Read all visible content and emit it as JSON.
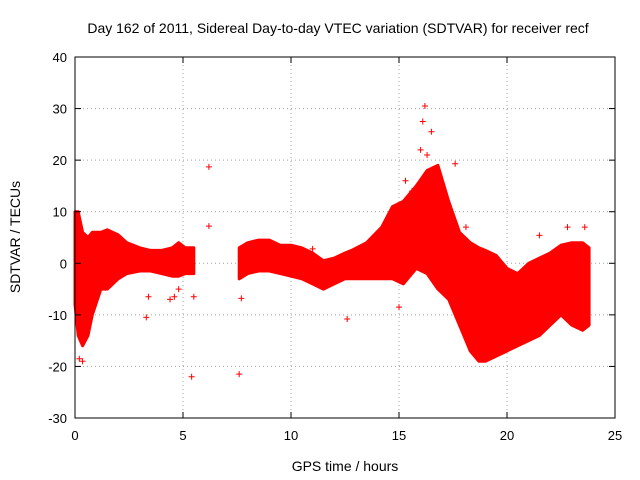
{
  "chart_data": {
    "type": "scatter",
    "title": "Day 162 of 2011, Sidereal Day-to-day VTEC variation (SDTVAR) for receiver recf",
    "xlabel": "GPS time / hours",
    "ylabel": "SDTVAR / TECUs",
    "xlim": [
      0,
      25
    ],
    "ylim": [
      -30,
      40
    ],
    "xticks": [
      "0",
      "5",
      "10",
      "15",
      "20",
      "25"
    ],
    "yticks": [
      "-30",
      "-20",
      "-10",
      "0",
      "10",
      "20",
      "30",
      "40"
    ],
    "grid": true,
    "marker": "+",
    "color": "#ff0000",
    "band_segments": [
      [
        [
          0.0,
          -8,
          10
        ],
        [
          0.15,
          -14,
          10
        ],
        [
          0.35,
          -16,
          6
        ],
        [
          0.6,
          -14,
          5
        ],
        [
          0.8,
          -10,
          6
        ],
        [
          1.2,
          -5,
          6
        ],
        [
          1.5,
          -5,
          6.5
        ],
        [
          2.0,
          -3,
          5.5
        ],
        [
          2.4,
          -2,
          4
        ],
        [
          3.0,
          -1.5,
          3
        ],
        [
          3.5,
          -1.5,
          2.5
        ],
        [
          4.0,
          -2,
          2.5
        ],
        [
          4.5,
          -2.5,
          3
        ],
        [
          4.8,
          -2.5,
          4
        ],
        [
          5.1,
          -2,
          3
        ],
        [
          5.5,
          -2,
          3
        ]
      ],
      [
        [
          7.6,
          -3,
          3
        ],
        [
          8.0,
          -2,
          4
        ],
        [
          8.5,
          -1.5,
          4.5
        ],
        [
          9.0,
          -1.5,
          4.5
        ],
        [
          9.5,
          -2,
          3.5
        ],
        [
          10.0,
          -2.5,
          3.5
        ],
        [
          10.5,
          -3,
          3
        ],
        [
          11.0,
          -4,
          2
        ],
        [
          11.5,
          -5,
          0.5
        ],
        [
          12.0,
          -4,
          1
        ],
        [
          12.5,
          -3,
          2
        ],
        [
          12.8,
          -3,
          2.5
        ],
        [
          13.5,
          -3,
          4
        ],
        [
          14.2,
          -3,
          7
        ],
        [
          14.7,
          -3,
          11
        ],
        [
          15.2,
          -4,
          12
        ],
        [
          15.8,
          -1,
          15
        ],
        [
          16.3,
          -2,
          18
        ],
        [
          16.8,
          -5,
          19
        ],
        [
          17.3,
          -7,
          12
        ],
        [
          17.8,
          -12,
          6
        ],
        [
          18.3,
          -17,
          4
        ],
        [
          18.7,
          -19,
          3
        ],
        [
          19.0,
          -19,
          2.5
        ],
        [
          19.5,
          -18,
          1.5
        ],
        [
          20.0,
          -17,
          -1
        ],
        [
          20.5,
          -16,
          -2
        ],
        [
          21.0,
          -15,
          0
        ],
        [
          21.5,
          -14,
          1
        ],
        [
          22.0,
          -12,
          2
        ],
        [
          22.5,
          -10,
          3.5
        ],
        [
          23.0,
          -12,
          4
        ],
        [
          23.5,
          -13,
          4
        ],
        [
          23.8,
          -12,
          3
        ]
      ]
    ],
    "outliers": [
      [
        0.2,
        -18.5
      ],
      [
        0.35,
        -19
      ],
      [
        3.4,
        -6.5
      ],
      [
        3.3,
        -10.5
      ],
      [
        4.4,
        -7
      ],
      [
        4.6,
        -6.5
      ],
      [
        4.8,
        -5
      ],
      [
        5.4,
        -22
      ],
      [
        5.5,
        -6.5
      ],
      [
        6.2,
        18.7
      ],
      [
        6.2,
        7.2
      ],
      [
        7.6,
        -21.5
      ],
      [
        7.7,
        -6.8
      ],
      [
        11.0,
        2.8
      ],
      [
        12.6,
        -10.8
      ],
      [
        15.0,
        -8.5
      ],
      [
        15.3,
        16
      ],
      [
        15.6,
        14
      ],
      [
        16.2,
        30.5
      ],
      [
        16.1,
        27.5
      ],
      [
        16.5,
        25.5
      ],
      [
        16.0,
        22
      ],
      [
        16.3,
        21
      ],
      [
        17.6,
        19.3
      ],
      [
        18.1,
        7
      ],
      [
        21.5,
        5.4
      ],
      [
        22.8,
        7
      ],
      [
        23.6,
        7
      ],
      [
        22.4,
        -9
      ],
      [
        23.2,
        0
      ]
    ]
  }
}
